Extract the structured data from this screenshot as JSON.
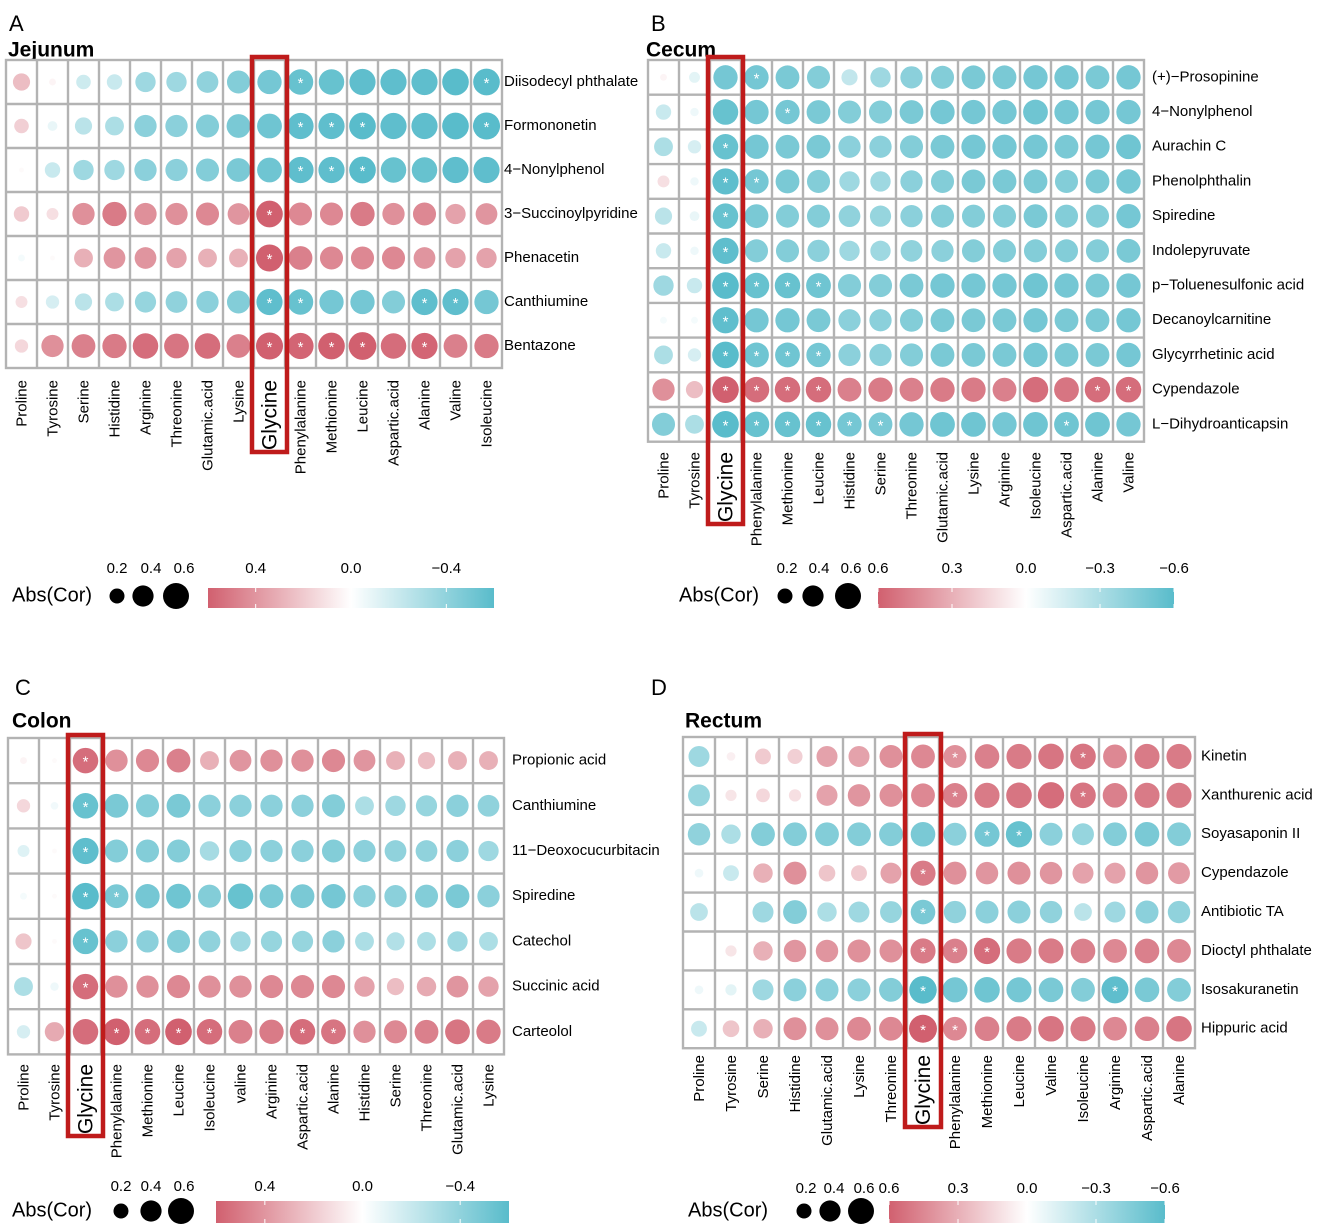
{
  "colors": {
    "positive": "#d1606f",
    "negative": "#59bccb",
    "grid": "#b3b3b3",
    "highlight": "#bf1b1b"
  },
  "chart_data": [
    {
      "panel_letter": "A",
      "type": "heatmap",
      "subtype": "correlation-dotplot",
      "title": "Jejunum",
      "x": [
        "Proline",
        "Tyrosine",
        "Serine",
        "Histidine",
        "Arginine",
        "Threonine",
        "Glutamic.acid",
        "Lysine",
        "Glycine",
        "Phenylalanine",
        "Methionine",
        "Leucine",
        "Aspartic.acid",
        "Alanine",
        "Valine",
        "Isoleucine"
      ],
      "y": [
        "Diisodecyl phthalate",
        "Formononetin",
        "4−Nonylphenol",
        "3−Succinoylpyridine",
        "Phenacetin",
        "Canthiumine",
        "Bentazone"
      ],
      "highlight_column": "Glycine",
      "values": [
        [
          0.25,
          0.04,
          -0.18,
          -0.2,
          -0.35,
          -0.35,
          -0.4,
          -0.45,
          -0.5,
          -0.55,
          -0.55,
          -0.58,
          -0.58,
          -0.58,
          -0.6,
          -0.6
        ],
        [
          0.18,
          -0.08,
          -0.25,
          -0.3,
          -0.42,
          -0.42,
          -0.45,
          -0.48,
          -0.52,
          -0.58,
          -0.58,
          -0.6,
          -0.58,
          -0.58,
          -0.6,
          -0.62
        ],
        [
          0.02,
          -0.2,
          -0.35,
          -0.35,
          -0.42,
          -0.42,
          -0.45,
          -0.48,
          -0.52,
          -0.58,
          -0.58,
          -0.6,
          -0.55,
          -0.55,
          -0.58,
          -0.58
        ],
        [
          0.2,
          0.12,
          0.42,
          0.5,
          0.42,
          0.42,
          0.45,
          0.4,
          0.6,
          0.45,
          0.45,
          0.5,
          0.42,
          0.45,
          0.35,
          0.4
        ],
        [
          -0.04,
          0.02,
          0.3,
          0.4,
          0.4,
          0.35,
          0.3,
          0.3,
          0.62,
          0.48,
          0.45,
          0.45,
          0.45,
          0.4,
          0.35,
          0.35
        ],
        [
          0.12,
          -0.15,
          -0.25,
          -0.3,
          -0.38,
          -0.4,
          -0.42,
          -0.45,
          -0.58,
          -0.55,
          -0.5,
          -0.5,
          -0.45,
          -0.58,
          -0.58,
          -0.5
        ],
        [
          0.15,
          0.42,
          0.48,
          0.5,
          0.55,
          0.52,
          0.55,
          0.48,
          0.62,
          0.58,
          0.6,
          0.65,
          0.55,
          0.58,
          0.48,
          0.5
        ]
      ],
      "significant": [
        [
          0,
          9
        ],
        [
          0,
          15
        ],
        [
          1,
          9
        ],
        [
          1,
          10
        ],
        [
          1,
          11
        ],
        [
          1,
          15
        ],
        [
          2,
          9
        ],
        [
          2,
          10
        ],
        [
          2,
          11
        ],
        [
          3,
          8
        ],
        [
          4,
          8
        ],
        [
          5,
          8
        ],
        [
          5,
          9
        ],
        [
          5,
          13
        ],
        [
          5,
          14
        ],
        [
          6,
          8
        ],
        [
          6,
          9
        ],
        [
          6,
          10
        ],
        [
          6,
          11
        ],
        [
          6,
          13
        ]
      ],
      "size_legend": {
        "title": "Abs(Cor)",
        "labels": [
          "0.2",
          "0.4",
          "0.6"
        ],
        "values": [
          0.2,
          0.4,
          0.6
        ]
      },
      "color_legend": {
        "labels": [
          "0.4",
          "0.0",
          "−0.4"
        ],
        "values": [
          0.4,
          0.0,
          -0.4
        ],
        "range": [
          0.6,
          -0.6
        ]
      }
    },
    {
      "panel_letter": "B",
      "type": "heatmap",
      "subtype": "correlation-dotplot",
      "title": "Cecum",
      "x": [
        "Proline",
        "Tyrosine",
        "Glycine",
        "Phenylalanine",
        "Methionine",
        "Leucine",
        "Histidine",
        "Serine",
        "Threonine",
        "Glutamic.acid",
        "Lysine",
        "Arginine",
        "Isoleucine",
        "Aspartic.acid",
        "Alanine",
        "Valine"
      ],
      "y": [
        "(+)−Prosopinine",
        "4−Nonylphenol",
        "Aurachin C",
        "Phenolphthalin",
        "Spiredine",
        "Indolepyruvate",
        "p−Toluenesulfonic acid",
        "Decanoylcarnitine",
        "Glycyrrhetinic acid",
        "Cypendazole",
        "L−Dihydroanticapsin"
      ],
      "highlight_column": "Glycine",
      "values": [
        [
          0.04,
          -0.1,
          -0.5,
          -0.5,
          -0.48,
          -0.45,
          -0.22,
          -0.35,
          -0.42,
          -0.45,
          -0.48,
          -0.48,
          -0.5,
          -0.5,
          -0.48,
          -0.5
        ],
        [
          -0.2,
          -0.06,
          -0.55,
          -0.5,
          -0.5,
          -0.48,
          -0.45,
          -0.45,
          -0.48,
          -0.5,
          -0.5,
          -0.5,
          -0.52,
          -0.5,
          -0.5,
          -0.5
        ],
        [
          -0.3,
          -0.15,
          -0.55,
          -0.5,
          -0.48,
          -0.48,
          -0.42,
          -0.42,
          -0.45,
          -0.48,
          -0.5,
          -0.5,
          -0.5,
          -0.48,
          -0.5,
          -0.52
        ],
        [
          0.12,
          -0.06,
          -0.58,
          -0.5,
          -0.48,
          -0.45,
          -0.35,
          -0.35,
          -0.42,
          -0.45,
          -0.48,
          -0.48,
          -0.48,
          -0.45,
          -0.48,
          -0.5
        ],
        [
          -0.25,
          -0.08,
          -0.55,
          -0.48,
          -0.45,
          -0.45,
          -0.4,
          -0.38,
          -0.42,
          -0.45,
          -0.45,
          -0.45,
          -0.48,
          -0.45,
          -0.45,
          -0.5
        ],
        [
          -0.2,
          -0.06,
          -0.58,
          -0.45,
          -0.45,
          -0.42,
          -0.35,
          -0.35,
          -0.4,
          -0.42,
          -0.45,
          -0.45,
          -0.45,
          -0.45,
          -0.45,
          -0.48
        ],
        [
          -0.35,
          -0.2,
          -0.6,
          -0.55,
          -0.55,
          -0.52,
          -0.45,
          -0.45,
          -0.48,
          -0.5,
          -0.5,
          -0.5,
          -0.52,
          -0.5,
          -0.48,
          -0.5
        ],
        [
          -0.04,
          -0.04,
          -0.58,
          -0.5,
          -0.5,
          -0.48,
          -0.42,
          -0.42,
          -0.45,
          -0.48,
          -0.48,
          -0.48,
          -0.5,
          -0.48,
          -0.48,
          -0.5
        ],
        [
          -0.3,
          -0.15,
          -0.6,
          -0.52,
          -0.52,
          -0.5,
          -0.42,
          -0.42,
          -0.45,
          -0.48,
          -0.48,
          -0.48,
          -0.5,
          -0.48,
          -0.48,
          -0.5
        ],
        [
          0.42,
          0.25,
          0.6,
          0.55,
          0.55,
          0.55,
          0.48,
          0.5,
          0.48,
          0.5,
          0.5,
          0.48,
          0.55,
          0.52,
          0.55,
          0.55
        ],
        [
          -0.45,
          -0.3,
          -0.6,
          -0.55,
          -0.55,
          -0.55,
          -0.5,
          -0.48,
          -0.5,
          -0.52,
          -0.52,
          -0.5,
          -0.52,
          -0.52,
          -0.52,
          -0.5
        ]
      ],
      "significant": [
        [
          0,
          3
        ],
        [
          1,
          4
        ],
        [
          2,
          2
        ],
        [
          3,
          2
        ],
        [
          3,
          3
        ],
        [
          4,
          2
        ],
        [
          5,
          2
        ],
        [
          6,
          2
        ],
        [
          6,
          3
        ],
        [
          6,
          4
        ],
        [
          6,
          5
        ],
        [
          7,
          2
        ],
        [
          8,
          2
        ],
        [
          8,
          3
        ],
        [
          8,
          4
        ],
        [
          8,
          5
        ],
        [
          9,
          2
        ],
        [
          9,
          3
        ],
        [
          9,
          4
        ],
        [
          9,
          5
        ],
        [
          9,
          14
        ],
        [
          9,
          15
        ],
        [
          10,
          2
        ],
        [
          10,
          3
        ],
        [
          10,
          4
        ],
        [
          10,
          5
        ],
        [
          10,
          6
        ],
        [
          10,
          7
        ],
        [
          10,
          13
        ]
      ],
      "size_legend": {
        "title": "Abs(Cor)",
        "labels": [
          "0.2",
          "0.4",
          "0.6"
        ],
        "values": [
          0.2,
          0.4,
          0.6
        ]
      },
      "color_legend": {
        "labels": [
          "0.6",
          "0.3",
          "0.0",
          "−0.3",
          "−0.6"
        ],
        "values": [
          0.6,
          0.3,
          0.0,
          -0.3,
          -0.6
        ],
        "range": [
          0.6,
          -0.6
        ]
      }
    },
    {
      "panel_letter": "C",
      "type": "heatmap",
      "subtype": "correlation-dotplot",
      "title": "Colon",
      "x": [
        "Proline",
        "Tyrosine",
        "Glycine",
        "Phenylalanine",
        "Methionine",
        "Leucine",
        "Isoleucine",
        "valine",
        "Arginine",
        "Aspartic.acid",
        "Alanine",
        "Histidine",
        "Serine",
        "Threonine",
        "Glutamic.acid",
        "Lysine"
      ],
      "y": [
        "Propionic acid",
        "Canthiumine",
        "11−Deoxocucurbitacin",
        "Spiredine",
        "Catechol",
        "Succinic acid",
        "Carteolol"
      ],
      "highlight_column": "Glycine",
      "values": [
        [
          0.04,
          0.02,
          0.55,
          0.42,
          0.45,
          0.48,
          0.3,
          0.4,
          0.42,
          0.42,
          0.45,
          0.4,
          0.3,
          0.25,
          0.3,
          0.3
        ],
        [
          0.15,
          -0.05,
          -0.55,
          -0.48,
          -0.45,
          -0.48,
          -0.42,
          -0.42,
          -0.42,
          -0.42,
          -0.45,
          -0.3,
          -0.35,
          -0.38,
          -0.42,
          -0.4
        ],
        [
          -0.12,
          0.02,
          -0.58,
          -0.45,
          -0.45,
          -0.45,
          -0.32,
          -0.42,
          -0.42,
          -0.42,
          -0.45,
          -0.42,
          -0.4,
          -0.4,
          -0.42,
          -0.35
        ],
        [
          -0.04,
          0.02,
          -0.6,
          -0.48,
          -0.5,
          -0.52,
          -0.45,
          -0.55,
          -0.48,
          -0.48,
          -0.5,
          -0.42,
          -0.42,
          -0.45,
          -0.48,
          -0.42
        ],
        [
          0.22,
          0.02,
          -0.55,
          -0.42,
          -0.42,
          -0.45,
          -0.4,
          -0.35,
          -0.38,
          -0.38,
          -0.42,
          -0.3,
          -0.28,
          -0.3,
          -0.35,
          -0.3
        ],
        [
          -0.3,
          -0.06,
          0.55,
          0.42,
          0.42,
          0.45,
          0.42,
          0.42,
          0.45,
          0.45,
          0.45,
          0.35,
          0.25,
          0.32,
          0.4,
          0.35
        ],
        [
          -0.15,
          0.32,
          0.55,
          0.6,
          0.55,
          0.6,
          0.55,
          0.48,
          0.5,
          0.55,
          0.52,
          0.42,
          0.45,
          0.48,
          0.52,
          0.5
        ]
      ],
      "significant": [
        [
          0,
          2
        ],
        [
          1,
          2
        ],
        [
          2,
          2
        ],
        [
          3,
          2
        ],
        [
          3,
          3
        ],
        [
          4,
          2
        ],
        [
          5,
          2
        ],
        [
          6,
          3
        ],
        [
          6,
          4
        ],
        [
          6,
          5
        ],
        [
          6,
          6
        ],
        [
          6,
          9
        ],
        [
          6,
          10
        ]
      ],
      "size_legend": {
        "title": "Abs(Cor)",
        "labels": [
          "0.2",
          "0.4",
          "0.6"
        ],
        "values": [
          0.2,
          0.4,
          0.6
        ]
      },
      "color_legend": {
        "labels": [
          "0.4",
          "0.0",
          "−0.4"
        ],
        "values": [
          0.4,
          0.0,
          -0.4
        ],
        "range": [
          0.6,
          -0.6
        ]
      }
    },
    {
      "panel_letter": "D",
      "type": "heatmap",
      "subtype": "correlation-dotplot",
      "title": "Rectum",
      "x": [
        "Proline",
        "Tyrosine",
        "Serine",
        "Histidine",
        "Glutamic.acid",
        "Lysine",
        "Threonine",
        "Glycine",
        "Phenylalanine",
        "Methionine",
        "Leucine",
        "Valine",
        "Isoleucine",
        "Arginine",
        "Aspartic.acid",
        "Alanine"
      ],
      "y": [
        "Kinetin",
        "Xanthurenic acid",
        "Soyasaponin II",
        "Cypendazole",
        "Antibiotic TA",
        "Dioctyl phthalate",
        "Isosakuranetin",
        "Hippuric acid"
      ],
      "highlight_column": "Glycine",
      "values": [
        [
          -0.35,
          0.06,
          0.2,
          0.18,
          0.35,
          0.35,
          0.42,
          0.45,
          0.42,
          0.48,
          0.5,
          0.52,
          0.52,
          0.45,
          0.5,
          0.5
        ],
        [
          -0.38,
          0.1,
          0.15,
          0.12,
          0.35,
          0.4,
          0.42,
          0.45,
          0.48,
          0.5,
          0.52,
          0.55,
          0.52,
          0.48,
          0.5,
          0.5
        ],
        [
          -0.4,
          -0.3,
          -0.45,
          -0.45,
          -0.45,
          -0.45,
          -0.45,
          -0.48,
          -0.42,
          -0.5,
          -0.55,
          -0.42,
          -0.38,
          -0.45,
          -0.48,
          -0.45
        ],
        [
          -0.06,
          -0.2,
          0.3,
          0.42,
          0.22,
          0.2,
          0.35,
          0.5,
          0.42,
          0.4,
          0.42,
          0.4,
          0.35,
          0.35,
          0.4,
          0.38
        ],
        [
          -0.25,
          0.0,
          -0.35,
          -0.45,
          -0.3,
          -0.35,
          -0.38,
          -0.48,
          -0.4,
          -0.42,
          -0.42,
          -0.4,
          -0.25,
          -0.35,
          -0.42,
          -0.4
        ],
        [
          0.0,
          0.1,
          0.3,
          0.4,
          0.4,
          0.42,
          0.42,
          0.5,
          0.48,
          0.55,
          0.5,
          0.5,
          0.48,
          0.45,
          0.48,
          0.45
        ],
        [
          -0.06,
          -0.1,
          -0.35,
          -0.42,
          -0.42,
          -0.42,
          -0.45,
          -0.6,
          -0.5,
          -0.52,
          -0.5,
          -0.48,
          -0.45,
          -0.58,
          -0.48,
          -0.45
        ],
        [
          -0.2,
          0.22,
          0.3,
          0.42,
          0.42,
          0.45,
          0.45,
          0.62,
          0.45,
          0.48,
          0.5,
          0.52,
          0.5,
          0.45,
          0.48,
          0.52
        ]
      ],
      "significant": [
        [
          0,
          8
        ],
        [
          0,
          12
        ],
        [
          1,
          8
        ],
        [
          1,
          12
        ],
        [
          2,
          9
        ],
        [
          2,
          10
        ],
        [
          3,
          7
        ],
        [
          4,
          7
        ],
        [
          5,
          7
        ],
        [
          5,
          8
        ],
        [
          5,
          9
        ],
        [
          6,
          7
        ],
        [
          6,
          13
        ],
        [
          7,
          7
        ],
        [
          7,
          8
        ]
      ],
      "size_legend": {
        "title": "Abs(Cor)",
        "labels": [
          "0.2",
          "0.4",
          "0.6"
        ],
        "values": [
          0.2,
          0.4,
          0.6
        ]
      },
      "color_legend": {
        "labels": [
          "0.6",
          "0.3",
          "0.0",
          "−0.3",
          "−0.6"
        ],
        "values": [
          0.6,
          0.3,
          0.0,
          -0.3,
          -0.6
        ],
        "range": [
          0.6,
          -0.6
        ]
      }
    }
  ]
}
